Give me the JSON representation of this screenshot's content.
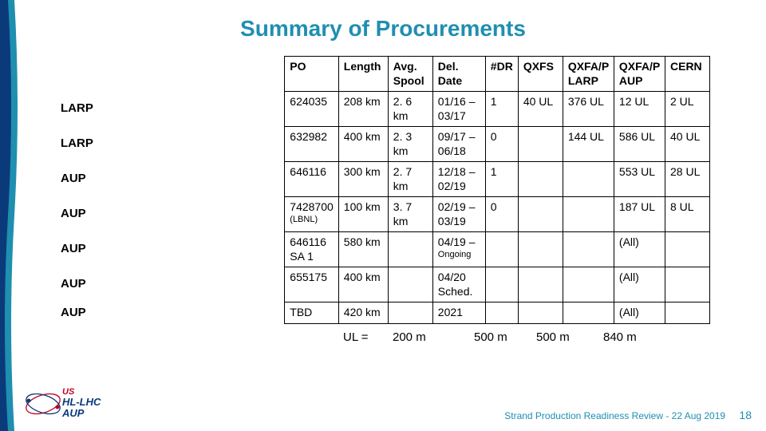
{
  "title": "Summary of Procurements",
  "columns": [
    "PO",
    "Length",
    "Avg. Spool",
    "Del. Date",
    "#DR",
    "QXFS",
    "QXFA/P LARP",
    "QXFA/P AUP",
    "CERN"
  ],
  "rowlabels": [
    "LARP",
    "LARP",
    "AUP",
    "AUP",
    "AUP",
    "AUP",
    "AUP"
  ],
  "rows": [
    {
      "po": "624035",
      "len": "208 km",
      "avg": "2. 6 km",
      "del": "01/16 – 03/17",
      "dr": "1",
      "qxfs": "40 UL",
      "ql": "376 UL",
      "qa": "12 UL",
      "cern": "2 UL"
    },
    {
      "po": "632982",
      "len": "400 km",
      "avg": "2. 3 km",
      "del": "09/17 – 06/18",
      "dr": "0",
      "qxfs": "",
      "ql": "144 UL",
      "qa": "586 UL",
      "cern": "40 UL"
    },
    {
      "po": "646116",
      "len": "300 km",
      "avg": "2. 7 km",
      "del": "12/18 – 02/19",
      "dr": "1",
      "qxfs": "",
      "ql": "",
      "qa": "553 UL",
      "cern": "28 UL"
    },
    {
      "po": "7428700",
      "po_sub": "(LBNL)",
      "len": "100 km",
      "avg": "3. 7 km",
      "del": "02/19 – 03/19",
      "dr": "0",
      "qxfs": "",
      "ql": "",
      "qa": "187 UL",
      "cern": "8 UL"
    },
    {
      "po": "646116 SA 1",
      "len": "580 km",
      "avg": "",
      "del": "04/19 –",
      "del_sub": "Ongoing",
      "dr": "",
      "qxfs": "",
      "ql": "",
      "qa": "(All)",
      "cern": ""
    },
    {
      "po": "655175",
      "len": "400 km",
      "avg": "",
      "del": "04/20 Sched.",
      "dr": "",
      "qxfs": "",
      "ql": "",
      "qa": "(All)",
      "cern": ""
    },
    {
      "po": "TBD",
      "len": "420 km",
      "avg": "",
      "del": "2021",
      "dr": "",
      "qxfs": "",
      "ql": "",
      "qa": "(All)",
      "cern": ""
    }
  ],
  "ul_line": {
    "label": "UL =",
    "v1": "200 m",
    "v2": "500 m",
    "v3": "500 m",
    "v4": "840 m"
  },
  "footer": {
    "text": "Strand Production Readiness Review - 22 Aug 2019",
    "page": "18"
  },
  "colors": {
    "accent": "#1f8fb0",
    "red": "#c00020",
    "navy": "#0a3a7a"
  }
}
